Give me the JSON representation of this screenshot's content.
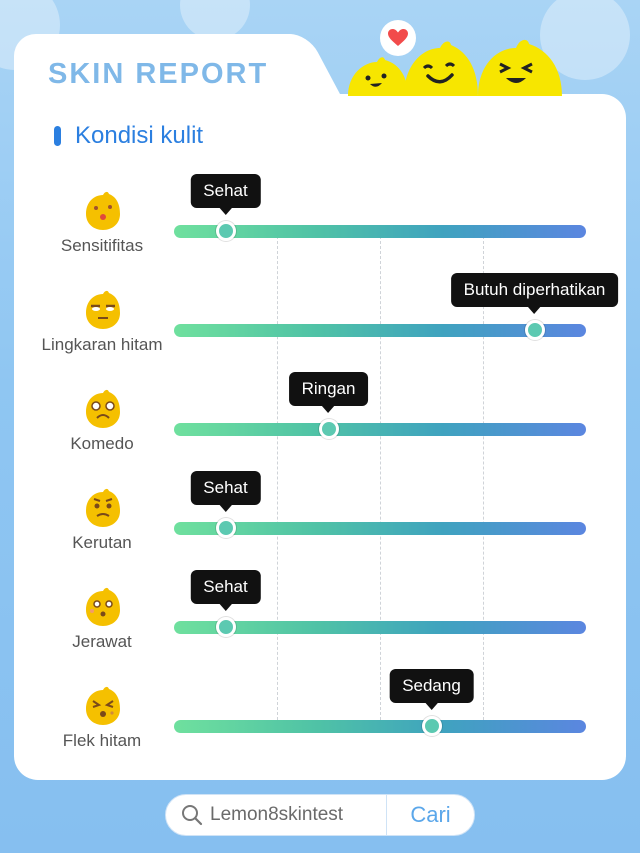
{
  "header": {
    "title": "SKIN REPORT"
  },
  "section": {
    "title": "Kondisi kulit"
  },
  "rows": [
    {
      "label": "Sensitifitas",
      "status": "Sehat",
      "level": 0.125,
      "icon": "kiss-emoji-icon"
    },
    {
      "label": "Lingkaran hitam",
      "status": "Butuh diperhatikan",
      "level": 0.875,
      "icon": "tired-emoji-icon"
    },
    {
      "label": "Komedo",
      "status": "Ringan",
      "level": 0.375,
      "icon": "nervous-emoji-icon"
    },
    {
      "label": "Kerutan",
      "status": "Sehat",
      "level": 0.125,
      "icon": "wrinkled-emoji-icon"
    },
    {
      "label": "Jerawat",
      "status": "Sehat",
      "level": 0.125,
      "icon": "surprised-emoji-icon"
    },
    {
      "label": "Flek hitam",
      "status": "Sedang",
      "level": 0.625,
      "icon": "spotted-emoji-icon"
    }
  ],
  "search": {
    "query": "Lemon8skintest",
    "button": "Cari"
  },
  "colors": {
    "accent": "#2b7fe0",
    "title": "#7fb8e8",
    "trackStart": "#6fe09e",
    "trackEnd": "#5b86e0"
  }
}
